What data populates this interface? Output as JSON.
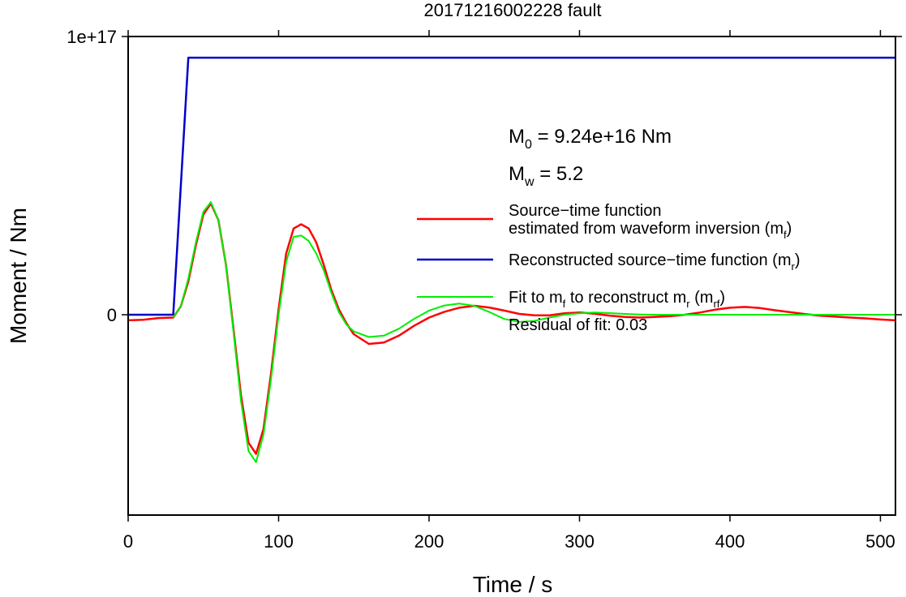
{
  "chart_data": {
    "type": "line",
    "title": "20171216002228 fault",
    "xlabel": "Time / s",
    "ylabel": "Moment / Nm",
    "xlim": [
      0,
      510
    ],
    "ylim": [
      -7.2e+16,
      1e+17
    ],
    "x_ticks": [
      {
        "value": 0,
        "label": "0"
      },
      {
        "value": 100,
        "label": "100"
      },
      {
        "value": 200,
        "label": "200"
      },
      {
        "value": 300,
        "label": "300"
      },
      {
        "value": 400,
        "label": "400"
      },
      {
        "value": 500,
        "label": "500"
      }
    ],
    "y_ticks": [
      {
        "value": 0,
        "label": "0"
      },
      {
        "value": 1e+17,
        "label": "1e+17"
      }
    ],
    "grid": false,
    "legend_position": "right",
    "annotations": {
      "m0": {
        "prefix": "M",
        "sub": "0",
        "suffix": " = 9.24e+16 Nm"
      },
      "mw": {
        "prefix": "M",
        "sub": "w",
        "suffix": " = 5.2"
      },
      "residual": "Residual of fit: 0.03"
    },
    "legend": [
      {
        "color": "#ff0000",
        "lines": [
          "Source−time function",
          "estimated from waveform inversion (m",
          "f",
          ")"
        ]
      },
      {
        "color": "#0000cc",
        "lines": [
          "Reconstructed source−time function (m",
          "r",
          ")"
        ]
      },
      {
        "color": "#00ee00",
        "lines": [
          "Fit to m",
          "f",
          " to reconstruct m",
          "r",
          " (m",
          "rf",
          ")"
        ]
      }
    ],
    "series": [
      {
        "color": "#ff0000",
        "x": [
          0,
          10,
          20,
          30,
          35,
          40,
          45,
          50,
          55,
          60,
          65,
          70,
          75,
          80,
          85,
          90,
          95,
          100,
          105,
          110,
          115,
          120,
          125,
          130,
          135,
          140,
          145,
          150,
          160,
          170,
          180,
          190,
          200,
          210,
          220,
          230,
          240,
          250,
          260,
          270,
          280,
          290,
          300,
          310,
          320,
          330,
          340,
          350,
          360,
          370,
          380,
          390,
          400,
          410,
          420,
          430,
          440,
          450,
          460,
          470,
          480,
          490,
          500,
          510
        ],
        "y": [
          -2000000000000000.0,
          -1800000000000000.0,
          -1200000000000000.0,
          -1000000000000000.0,
          3000000000000000.0,
          1.2e+16,
          2.5e+16,
          3.6e+16,
          4e+16,
          3.4e+16,
          1.8e+16,
          -5000000000000000.0,
          -2.9e+16,
          -4.6e+16,
          -5e+16,
          -4.1e+16,
          -2.1e+16,
          2000000000000000.0,
          2.2e+16,
          3.1e+16,
          3.25e+16,
          3.1e+16,
          2.6e+16,
          1.8e+16,
          9000000000000000.0,
          2000000000000000.0,
          -3000000000000000.0,
          -7000000000000000.0,
          -1.05e+16,
          -1e+16,
          -7500000000000000.0,
          -4000000000000000.0,
          -1000000000000000.0,
          1000000000000000.0,
          2500000000000000.0,
          3200000000000000.0,
          2600000000000000.0,
          1500000000000000.0,
          300000000000000.0,
          -200000000000000.0,
          -200000000000000.0,
          500000000000000.0,
          800000000000000.0,
          400000000000000.0,
          -300000000000000.0,
          -800000000000000.0,
          -1000000000000000.0,
          -800000000000000.0,
          -500000000000000.0,
          0,
          800000000000000.0,
          1800000000000000.0,
          2500000000000000.0,
          2800000000000000.0,
          2400000000000000.0,
          1600000000000000.0,
          900000000000000.0,
          200000000000000.0,
          -300000000000000.0,
          -700000000000000.0,
          -1000000000000000.0,
          -1300000000000000.0,
          -1700000000000000.0,
          -2000000000000000.0
        ]
      },
      {
        "color": "#0000cc",
        "x": [
          0,
          30,
          40,
          510
        ],
        "y": [
          0,
          0,
          9.24e+16,
          9.24e+16
        ]
      },
      {
        "color": "#00ee00",
        "x": [
          30,
          35,
          40,
          45,
          50,
          55,
          60,
          65,
          70,
          75,
          80,
          85,
          90,
          95,
          100,
          105,
          110,
          115,
          120,
          125,
          130,
          135,
          140,
          145,
          150,
          160,
          170,
          180,
          190,
          200,
          210,
          220,
          230,
          240,
          250,
          260,
          270,
          280,
          290,
          300,
          310,
          320,
          330,
          340,
          350,
          360,
          380,
          400,
          420,
          440,
          460,
          480,
          500,
          510
        ],
        "y": [
          -1000000000000000.0,
          3000000000000000.0,
          1.3e+16,
          2.6e+16,
          3.7e+16,
          4.05e+16,
          3.4e+16,
          1.8e+16,
          -6000000000000000.0,
          -3.1e+16,
          -4.9e+16,
          -5.3e+16,
          -4.3e+16,
          -2.3e+16,
          0,
          1.9e+16,
          2.8e+16,
          2.85e+16,
          2.65e+16,
          2.2e+16,
          1.6e+16,
          8000000000000000.0,
          1000000000000000.0,
          -3500000000000000.0,
          -6000000000000000.0,
          -8000000000000000.0,
          -7500000000000000.0,
          -5000000000000000.0,
          -1500000000000000.0,
          1500000000000000.0,
          3300000000000000.0,
          4000000000000000.0,
          3200000000000000.0,
          1000000000000000.0,
          -1500000000000000.0,
          -2600000000000000.0,
          -2200000000000000.0,
          -1000000000000000.0,
          0,
          500000000000000.0,
          800000000000000.0,
          600000000000000.0,
          300000000000000.0,
          100000000000000.0,
          0,
          0,
          0,
          0,
          0,
          0,
          0,
          0,
          0,
          0
        ]
      }
    ]
  }
}
